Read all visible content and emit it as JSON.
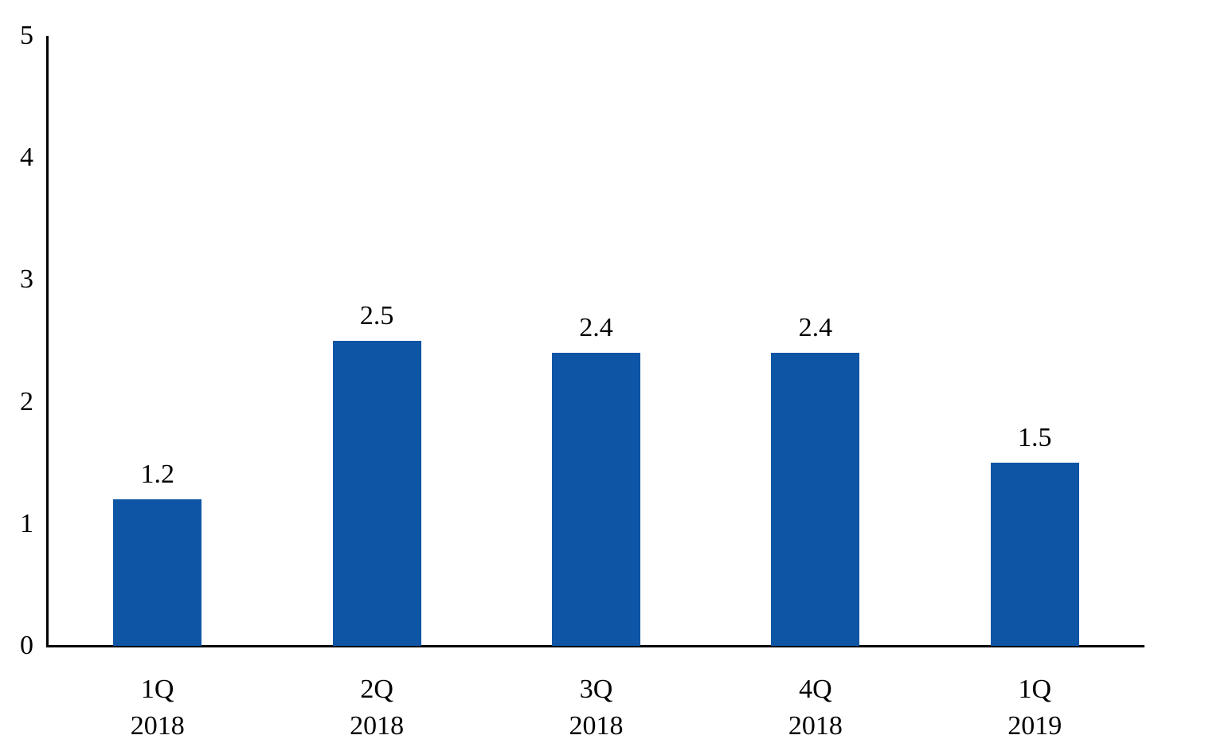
{
  "chart_data": {
    "type": "bar",
    "categories": [
      "1Q\n2018",
      "2Q\n2018",
      "3Q\n2018",
      "4Q\n2018",
      "1Q\n2019"
    ],
    "values": [
      1.2,
      2.5,
      2.4,
      2.4,
      1.5
    ],
    "data_labels": [
      "1.2",
      "2.5",
      "2.4",
      "2.4",
      "1.5"
    ],
    "title": "",
    "xlabel": "",
    "ylabel": "",
    "ylim": [
      0,
      5
    ],
    "yticks": [
      "0",
      "1",
      "2",
      "3",
      "4",
      "5"
    ],
    "grid": false,
    "legend": "none",
    "bar_color": "#0E55A5",
    "axis_color": "#000000"
  }
}
